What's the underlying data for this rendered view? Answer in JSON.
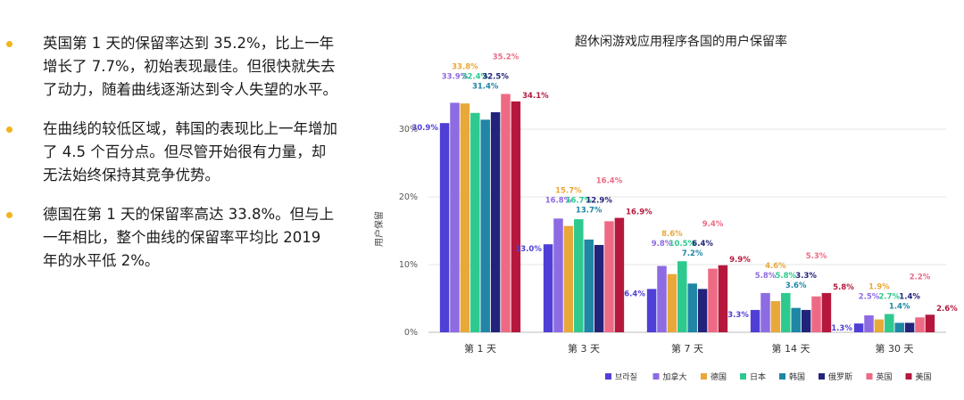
{
  "bullets": [
    "英国第 1 天的保留率达到 35.2%，比上一年增长了 7.7%，初始表现最佳。但很快就失去了动力，随着曲线逐渐达到令人失望的水平。",
    "在曲线的较低区域，韩国的表现比上一年增加了 4.5 个百分点。但尽管开始很有力量，却无法始终保持其竞争优势。",
    "德国在第 1 天的保留率高达 33.8%。但与上一年相比，整个曲线的保留率平均比 2019 年的水平低 2%。"
  ],
  "colors": {
    "bullet_dot": "#f3b31c"
  },
  "chart_data": {
    "type": "bar",
    "title": "超休闲游戏应用程序各国的用户保留率",
    "ylabel": "用户保留",
    "xlabel": "",
    "ylim": [
      0,
      35
    ],
    "yticks": [
      "0%",
      "10%",
      "20%",
      "30%"
    ],
    "ytick_values": [
      0,
      10,
      20,
      30
    ],
    "grid": true,
    "legend_position": "bottom-right",
    "categories": [
      "第 1 天",
      "第 3 天",
      "第 7 天",
      "第 14 天",
      "第 30 天"
    ],
    "series": [
      {
        "name": "브라질",
        "color": "#4f3fd6",
        "values": [
          30.9,
          13.0,
          6.4,
          3.3,
          1.3
        ],
        "labels": [
          "30.9%",
          "13.0%",
          "6.4%",
          "3.3%",
          "1.3%"
        ]
      },
      {
        "name": "加拿大",
        "color": "#8d6be2",
        "values": [
          33.9,
          16.8,
          9.8,
          5.8,
          2.5
        ],
        "labels": [
          "33.9%",
          "16.8%",
          "9.8%",
          "5.8%",
          "2.5%"
        ]
      },
      {
        "name": "德国",
        "color": "#e8a83a",
        "values": [
          33.8,
          15.7,
          8.6,
          4.6,
          1.9
        ],
        "labels": [
          "33.8%",
          "15.7%",
          "8.6%",
          "4.6%",
          "1.9%"
        ]
      },
      {
        "name": "日本",
        "color": "#2ec98e",
        "values": [
          32.4,
          16.7,
          10.5,
          5.8,
          2.7
        ],
        "labels": [
          "32.4%",
          "16.7%",
          "10.5%",
          "5.8%",
          "2.7%"
        ]
      },
      {
        "name": "韩国",
        "color": "#1f86a5",
        "values": [
          31.4,
          13.7,
          7.2,
          3.6,
          1.4
        ],
        "labels": [
          "31.4%",
          "13.7%",
          "7.2%",
          "3.6%",
          "1.4%"
        ]
      },
      {
        "name": "俄罗斯",
        "color": "#22237a",
        "values": [
          32.5,
          12.9,
          6.4,
          3.3,
          1.4
        ],
        "labels": [
          "32.5%",
          "12.9%",
          "6.4%",
          "3.3%",
          "1.4%"
        ]
      },
      {
        "name": "英国",
        "color": "#ee6a84",
        "values": [
          35.2,
          16.4,
          9.4,
          5.3,
          2.2
        ],
        "labels": [
          "35.2%",
          "16.4%",
          "9.4%",
          "5.3%",
          "2.2%"
        ]
      },
      {
        "name": "美国",
        "color": "#b5183c",
        "values": [
          34.1,
          16.9,
          9.9,
          5.8,
          2.6
        ],
        "labels": [
          "34.1%",
          "16.9%",
          "9.9%",
          "5.8%",
          "2.6%"
        ]
      }
    ]
  }
}
